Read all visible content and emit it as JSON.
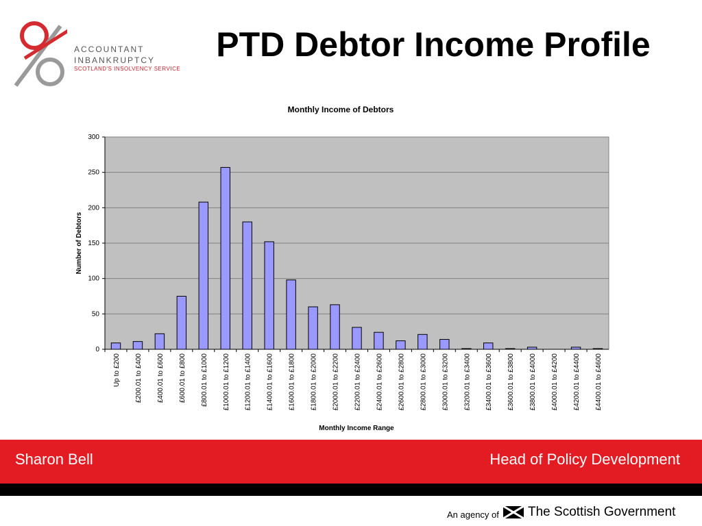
{
  "logo": {
    "line1": "ACCOUNTANT",
    "line2": "INBANKRUPTCY",
    "line3": "SCOTLAND'S INSOLVENCY SERVICE",
    "icon": "aib-circles-logo-icon",
    "colors": {
      "red": "#d42b30",
      "grey": "#9a9a9a"
    }
  },
  "slide_title": "PTD Debtor Income Profile",
  "chart_data": {
    "type": "bar",
    "title": "Monthly Income of Debtors",
    "xlabel": "Monthly Income Range",
    "ylabel": "Number of Debtors",
    "ylim": [
      0,
      300
    ],
    "yticks": [
      0,
      50,
      100,
      150,
      200,
      250,
      300
    ],
    "grid": true,
    "legend": "none",
    "colors": {
      "bar": "#9999ff",
      "plot_bg": "#c0c0c0"
    },
    "categories": [
      "Up to £200",
      "£200.01 to £400",
      "£400.01 to £600",
      "£600.01 to £800",
      "£800.01 to £1000",
      "£1000.01 to £1200",
      "£1200.01 to £1400",
      "£1400.01 to £1600",
      "£1600.01 to £1800",
      "£1800.01 to £2000",
      "£2000.01 to £2200",
      "£2200.01 to £2400",
      "£2400.01 to £2600",
      "£2600.01 to £2800",
      "£2800.01 to £3000",
      "£3000.01 to £3200",
      "£3200.01 to £3400",
      "£3400.01 to £3600",
      "£3600.01 to £3800",
      "£3800.01 to £4000",
      "£4000.01 to £4200",
      "£4200.01 to £4400",
      "£4400.01 to £4600"
    ],
    "values": [
      9,
      11,
      22,
      75,
      208,
      257,
      180,
      152,
      98,
      60,
      63,
      31,
      24,
      12,
      21,
      14,
      1,
      9,
      1,
      3,
      0,
      3,
      1
    ]
  },
  "footer": {
    "presenter": "Sharon Bell",
    "role": "Head of Policy Development",
    "agency_label": "An agency of",
    "agency_name": "The Scottish Government",
    "flag_icon": "saltire-flag-icon",
    "colors": {
      "band": "#e31b23",
      "strip": "#000000"
    }
  }
}
